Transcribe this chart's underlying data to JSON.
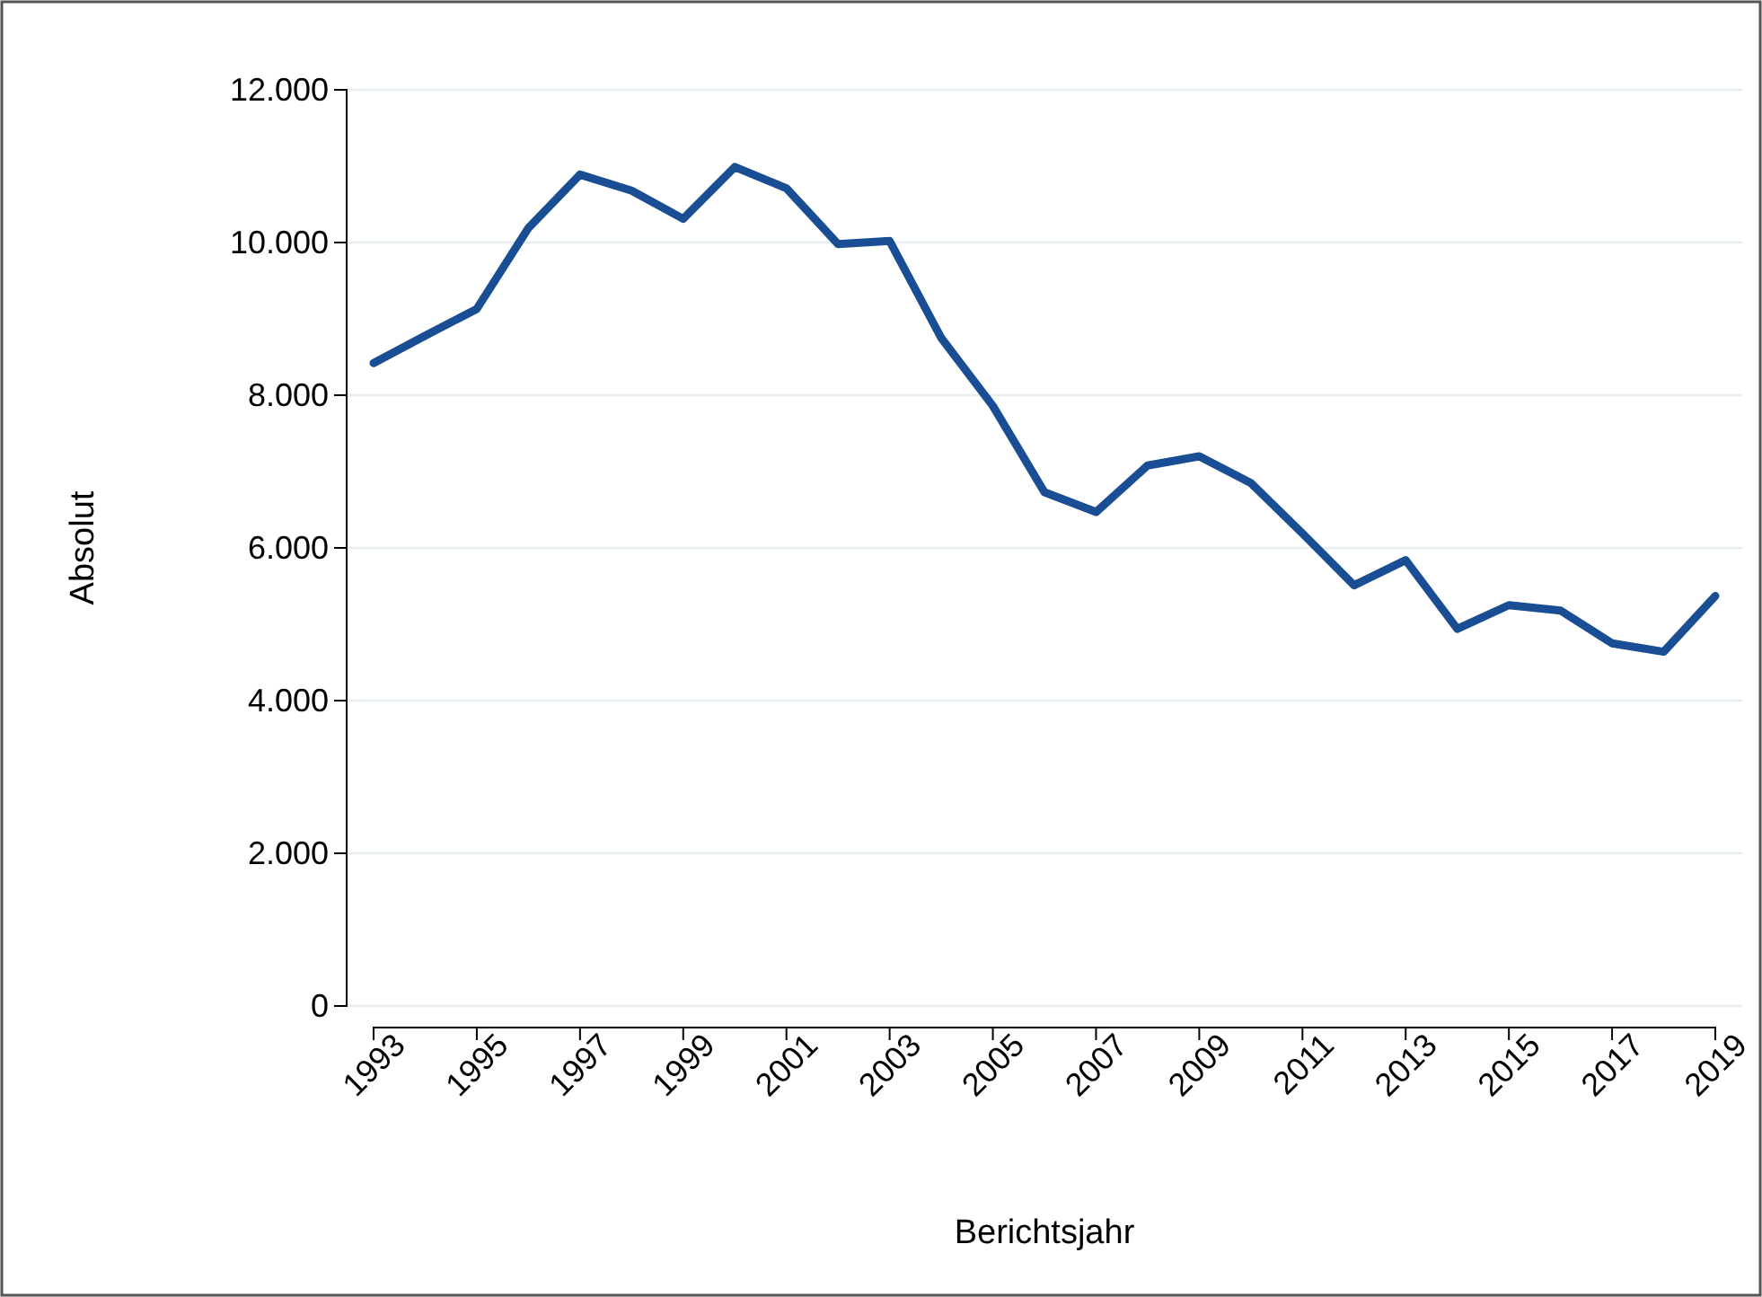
{
  "chart_data": {
    "type": "line",
    "xlabel": "Berichtsjahr",
    "ylabel": "Absolut",
    "x": [
      1993,
      1994,
      1995,
      1996,
      1997,
      1998,
      1999,
      2000,
      2001,
      2002,
      2003,
      2004,
      2005,
      2006,
      2007,
      2008,
      2009,
      2010,
      2011,
      2012,
      2013,
      2014,
      2015,
      2016,
      2017,
      2018,
      2019
    ],
    "series": [
      {
        "color": "#1a4e94",
        "values": [
          8420,
          8780,
          9130,
          10190,
          10890,
          10680,
          10310,
          10990,
          10710,
          9980,
          10020,
          8750,
          7860,
          6730,
          6470,
          7080,
          7200,
          6850,
          6190,
          5510,
          5840,
          4940,
          5250,
          5180,
          4750,
          4640,
          5370
        ]
      }
    ],
    "xlim": [
      1993,
      2019
    ],
    "xticks": [
      1993,
      1995,
      1997,
      1999,
      2001,
      2003,
      2005,
      2007,
      2009,
      2011,
      2013,
      2015,
      2017,
      2019
    ],
    "ylim": [
      0,
      12000
    ],
    "yticks": [
      {
        "value": 0,
        "label": "0"
      },
      {
        "value": 2000,
        "label": "2.000"
      },
      {
        "value": 4000,
        "label": "4.000"
      },
      {
        "value": 6000,
        "label": "6.000"
      },
      {
        "value": 8000,
        "label": "8.000"
      },
      {
        "value": 10000,
        "label": "10.000"
      },
      {
        "value": 12000,
        "label": "12.000"
      }
    ],
    "grid": "y",
    "marker": "none",
    "line_style": "solid"
  }
}
